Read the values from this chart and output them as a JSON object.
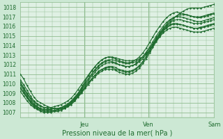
{
  "xlabel": "Pression niveau de la mer( hPa )",
  "bg_color": "#cce8d4",
  "plot_bg_color": "#dff0e4",
  "grid_color": "#8fbc8f",
  "line_color": "#1e6b2e",
  "text_color": "#1e6b2e",
  "ylim": [
    1006.5,
    1018.5
  ],
  "yticks": [
    1007,
    1008,
    1009,
    1010,
    1011,
    1012,
    1013,
    1014,
    1015,
    1016,
    1017,
    1018
  ],
  "day_labels": [
    "Jeu",
    "Ven",
    "Sam"
  ],
  "day_positions": [
    0.33,
    0.66,
    1.0
  ],
  "figsize": [
    3.2,
    2.0
  ],
  "dpi": 100,
  "series": [
    [
      1011.0,
      1010.5,
      1009.8,
      1009.2,
      1008.6,
      1008.2,
      1008.0,
      1007.8,
      1007.6,
      1007.5,
      1007.4,
      1007.4,
      1007.5,
      1007.6,
      1007.8,
      1008.1,
      1008.5,
      1009.0,
      1009.6,
      1010.2,
      1010.8,
      1011.3,
      1011.8,
      1012.2,
      1012.5,
      1012.7,
      1012.8,
      1012.8,
      1012.7,
      1012.6,
      1012.5,
      1012.4,
      1012.4,
      1012.4,
      1012.5,
      1012.6,
      1012.8,
      1013.1,
      1013.5,
      1014.0,
      1014.5,
      1015.0,
      1015.5,
      1016.0,
      1016.4,
      1016.8,
      1017.1,
      1017.4,
      1017.6,
      1017.8,
      1017.9,
      1017.9,
      1017.9,
      1017.9,
      1018.0,
      1018.1,
      1018.2,
      1018.3
    ],
    [
      1010.4,
      1009.9,
      1009.3,
      1008.7,
      1008.2,
      1007.9,
      1007.7,
      1007.5,
      1007.4,
      1007.4,
      1007.4,
      1007.4,
      1007.5,
      1007.6,
      1007.8,
      1008.1,
      1008.4,
      1008.9,
      1009.4,
      1010.0,
      1010.5,
      1011.0,
      1011.5,
      1011.9,
      1012.2,
      1012.4,
      1012.5,
      1012.5,
      1012.4,
      1012.3,
      1012.2,
      1012.1,
      1012.1,
      1012.2,
      1012.3,
      1012.5,
      1012.8,
      1013.2,
      1013.7,
      1014.2,
      1014.8,
      1015.3,
      1015.8,
      1016.2,
      1016.6,
      1016.9,
      1017.1,
      1017.2,
      1017.2,
      1017.2,
      1017.1,
      1017.0,
      1017.0,
      1017.0,
      1017.1,
      1017.2,
      1017.3,
      1017.4
    ],
    [
      1010.0,
      1009.5,
      1008.9,
      1008.4,
      1007.9,
      1007.6,
      1007.4,
      1007.3,
      1007.2,
      1007.2,
      1007.2,
      1007.3,
      1007.4,
      1007.5,
      1007.7,
      1008.0,
      1008.4,
      1008.8,
      1009.3,
      1009.8,
      1010.3,
      1010.8,
      1011.2,
      1011.6,
      1011.9,
      1012.1,
      1012.2,
      1012.2,
      1012.1,
      1012.0,
      1011.9,
      1011.8,
      1011.8,
      1011.9,
      1012.0,
      1012.3,
      1012.6,
      1013.0,
      1013.5,
      1014.1,
      1014.7,
      1015.2,
      1015.7,
      1016.1,
      1016.4,
      1016.6,
      1016.7,
      1016.7,
      1016.6,
      1016.5,
      1016.4,
      1016.3,
      1016.3,
      1016.3,
      1016.4,
      1016.5,
      1016.6,
      1016.7
    ],
    [
      1009.5,
      1009.0,
      1008.5,
      1008.0,
      1007.6,
      1007.4,
      1007.2,
      1007.1,
      1007.1,
      1007.1,
      1007.1,
      1007.2,
      1007.3,
      1007.4,
      1007.6,
      1007.9,
      1008.2,
      1008.7,
      1009.1,
      1009.6,
      1010.1,
      1010.5,
      1010.9,
      1011.3,
      1011.5,
      1011.7,
      1011.8,
      1011.8,
      1011.7,
      1011.5,
      1011.4,
      1011.3,
      1011.3,
      1011.4,
      1011.6,
      1011.9,
      1012.3,
      1012.8,
      1013.4,
      1014.0,
      1014.5,
      1015.0,
      1015.5,
      1015.8,
      1016.1,
      1016.2,
      1016.2,
      1016.2,
      1016.1,
      1016.0,
      1015.9,
      1015.8,
      1015.8,
      1015.8,
      1015.9,
      1016.0,
      1016.1,
      1016.2
    ],
    [
      1009.2,
      1008.7,
      1008.2,
      1007.8,
      1007.5,
      1007.3,
      1007.1,
      1007.0,
      1007.0,
      1007.0,
      1007.1,
      1007.1,
      1007.2,
      1007.4,
      1007.6,
      1007.8,
      1008.2,
      1008.6,
      1009.0,
      1009.5,
      1009.9,
      1010.4,
      1010.7,
      1011.1,
      1011.3,
      1011.5,
      1011.5,
      1011.5,
      1011.4,
      1011.2,
      1011.1,
      1011.0,
      1011.0,
      1011.1,
      1011.3,
      1011.6,
      1012.1,
      1012.6,
      1013.2,
      1013.8,
      1014.4,
      1014.9,
      1015.3,
      1015.6,
      1015.8,
      1015.9,
      1015.9,
      1015.8,
      1015.7,
      1015.6,
      1015.5,
      1015.4,
      1015.4,
      1015.4,
      1015.5,
      1015.6,
      1015.7,
      1015.8
    ],
    [
      1009.6,
      1009.1,
      1008.6,
      1008.1,
      1007.7,
      1007.5,
      1007.3,
      1007.2,
      1007.2,
      1007.2,
      1007.2,
      1007.3,
      1007.4,
      1007.5,
      1007.7,
      1008.0,
      1008.3,
      1008.7,
      1009.2,
      1009.6,
      1010.1,
      1010.5,
      1010.9,
      1011.2,
      1011.5,
      1011.6,
      1011.7,
      1011.7,
      1011.5,
      1011.4,
      1011.3,
      1011.2,
      1011.2,
      1011.3,
      1011.5,
      1011.8,
      1012.3,
      1012.8,
      1013.4,
      1014.0,
      1014.6,
      1015.1,
      1015.6,
      1015.9,
      1016.2,
      1016.3,
      1016.3,
      1016.2,
      1016.1,
      1016.0,
      1015.9,
      1015.8,
      1015.8,
      1015.9,
      1016.0,
      1016.1,
      1016.2,
      1016.3
    ],
    [
      1009.9,
      1009.3,
      1008.7,
      1008.2,
      1007.8,
      1007.5,
      1007.4,
      1007.3,
      1007.3,
      1007.3,
      1007.4,
      1007.4,
      1007.5,
      1007.7,
      1007.9,
      1008.2,
      1008.6,
      1009.0,
      1009.5,
      1010.0,
      1010.5,
      1011.0,
      1011.4,
      1011.8,
      1012.1,
      1012.3,
      1012.4,
      1012.3,
      1012.2,
      1012.0,
      1011.9,
      1011.8,
      1011.8,
      1011.9,
      1012.1,
      1012.4,
      1012.8,
      1013.3,
      1013.8,
      1014.4,
      1015.0,
      1015.5,
      1016.0,
      1016.4,
      1016.7,
      1016.9,
      1017.0,
      1017.0,
      1016.9,
      1016.8,
      1016.7,
      1016.6,
      1016.5,
      1016.5,
      1016.6,
      1016.7,
      1016.8,
      1016.9
    ],
    [
      1010.2,
      1009.6,
      1009.0,
      1008.5,
      1008.1,
      1007.8,
      1007.6,
      1007.5,
      1007.5,
      1007.5,
      1007.6,
      1007.7,
      1007.8,
      1008.0,
      1008.2,
      1008.5,
      1008.9,
      1009.4,
      1009.9,
      1010.4,
      1010.9,
      1011.4,
      1011.8,
      1012.2,
      1012.5,
      1012.7,
      1012.8,
      1012.7,
      1012.6,
      1012.4,
      1012.3,
      1012.2,
      1012.2,
      1012.3,
      1012.5,
      1012.8,
      1013.2,
      1013.7,
      1014.3,
      1014.9,
      1015.5,
      1016.0,
      1016.5,
      1016.9,
      1017.2,
      1017.4,
      1017.5,
      1017.4,
      1017.3,
      1017.2,
      1017.1,
      1017.0,
      1016.9,
      1016.9,
      1017.0,
      1017.1,
      1017.2,
      1017.3
    ]
  ]
}
